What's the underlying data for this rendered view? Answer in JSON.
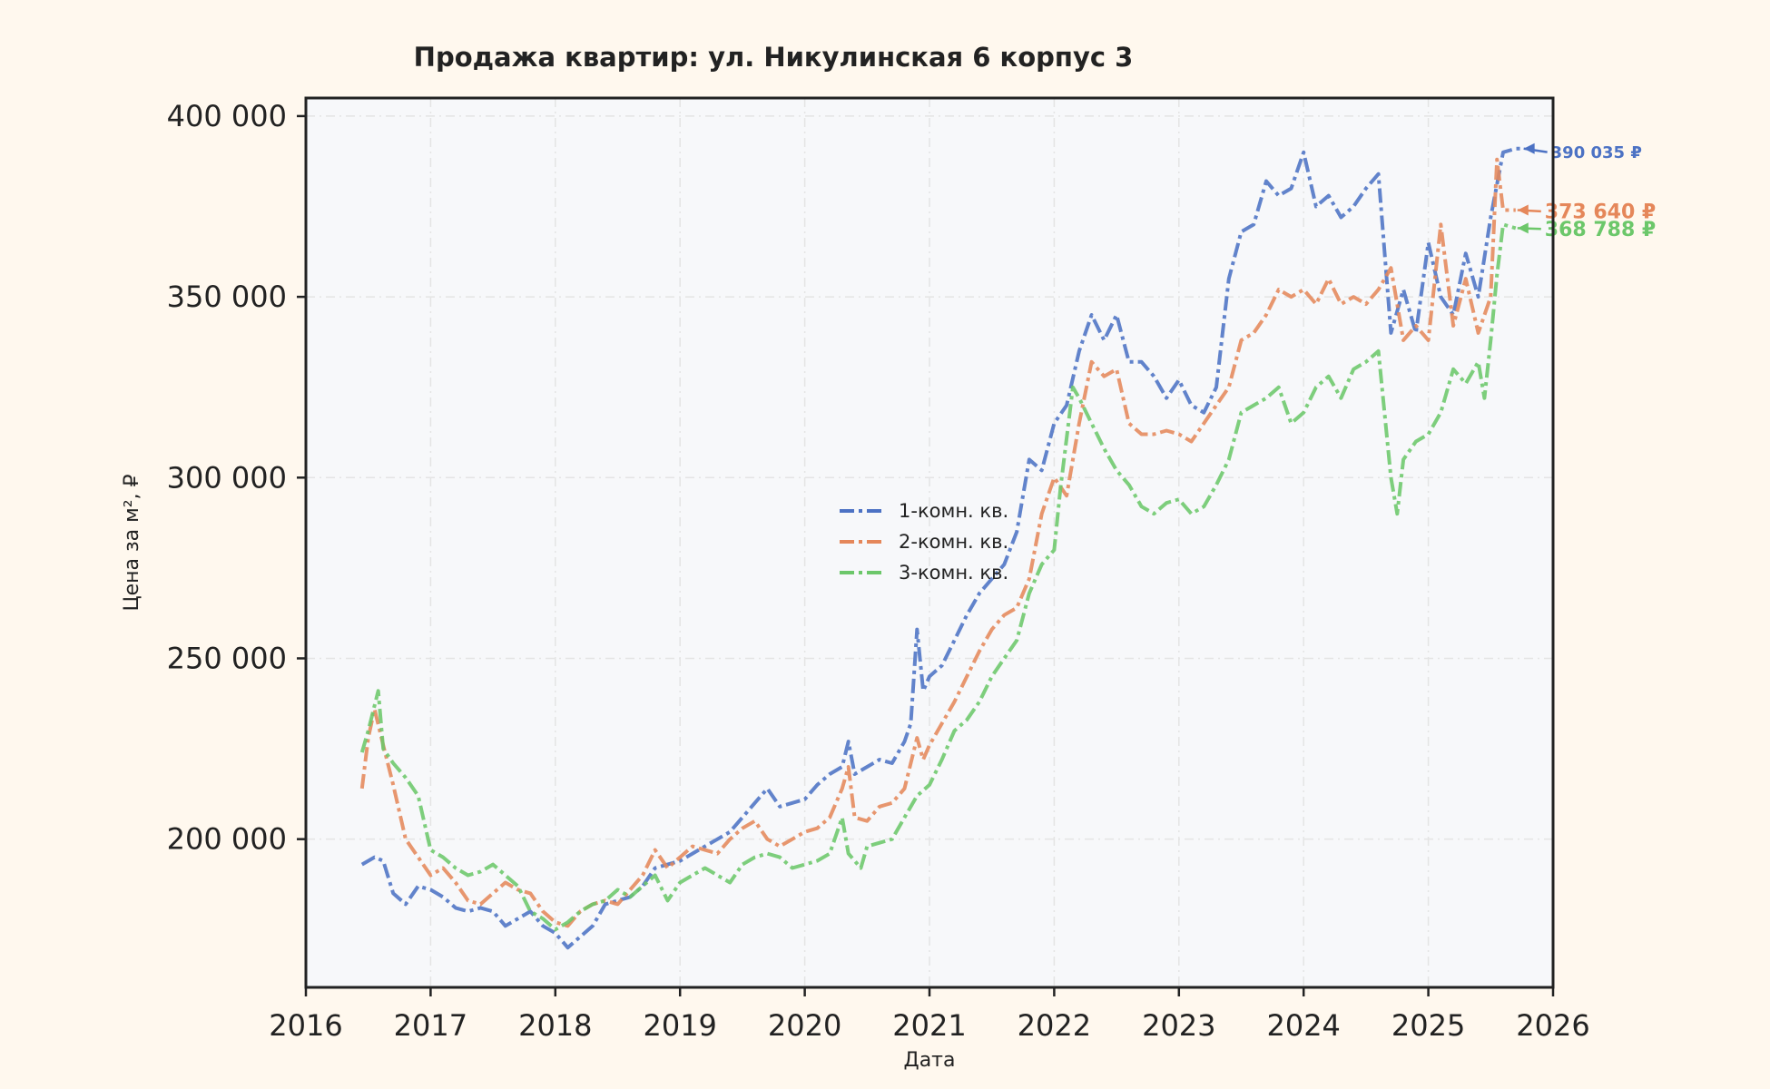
{
  "chart_data": {
    "type": "line",
    "title": "Продажа квартир: ул. Никулинская 6 корпус 3",
    "xlabel": "Дата",
    "ylabel": "Цена за м², ₽",
    "xlim": [
      2016,
      2026
    ],
    "ylim": [
      159000,
      405000
    ],
    "x_ticks": [
      "2016",
      "2017",
      "2018",
      "2019",
      "2020",
      "2021",
      "2022",
      "2023",
      "2024",
      "2025",
      "2026"
    ],
    "y_ticks": [
      {
        "value": 200000,
        "label": "200 000"
      },
      {
        "value": 250000,
        "label": "250 000"
      },
      {
        "value": 300000,
        "label": "300 000"
      },
      {
        "value": 350000,
        "label": "350 000"
      },
      {
        "value": 400000,
        "label": "400 000"
      }
    ],
    "grid": true,
    "legend_position": "center",
    "series": [
      {
        "name": "1-комн. кв.",
        "color": "#4c72c4",
        "end_label": "390 035 ₽",
        "end_value": 390035,
        "x": [
          2016.45,
          2016.55,
          2016.62,
          2016.7,
          2016.8,
          2016.9,
          2017.0,
          2017.1,
          2017.2,
          2017.3,
          2017.4,
          2017.5,
          2017.6,
          2017.7,
          2017.8,
          2017.9,
          2018.0,
          2018.1,
          2018.2,
          2018.3,
          2018.4,
          2018.5,
          2018.6,
          2018.7,
          2018.8,
          2018.9,
          2019.0,
          2019.1,
          2019.2,
          2019.3,
          2019.4,
          2019.5,
          2019.6,
          2019.7,
          2019.8,
          2019.9,
          2020.0,
          2020.1,
          2020.2,
          2020.3,
          2020.35,
          2020.4,
          2020.5,
          2020.6,
          2020.7,
          2020.8,
          2020.85,
          2020.9,
          2020.95,
          2021.0,
          2021.1,
          2021.2,
          2021.3,
          2021.4,
          2021.5,
          2021.6,
          2021.7,
          2021.75,
          2021.8,
          2021.9,
          2022.0,
          2022.1,
          2022.2,
          2022.3,
          2022.4,
          2022.5,
          2022.6,
          2022.7,
          2022.8,
          2022.9,
          2023.0,
          2023.1,
          2023.2,
          2023.3,
          2023.35,
          2023.4,
          2023.5,
          2023.6,
          2023.7,
          2023.8,
          2023.9,
          2024.0,
          2024.1,
          2024.2,
          2024.3,
          2024.4,
          2024.5,
          2024.6,
          2024.7,
          2024.8,
          2024.9,
          2025.0,
          2025.1,
          2025.2,
          2025.3,
          2025.4,
          2025.5,
          2025.6,
          2025.7,
          2025.75
        ],
        "y": [
          193000,
          195000,
          194000,
          185000,
          182000,
          187000,
          186000,
          184000,
          181000,
          180000,
          181000,
          180000,
          176000,
          178000,
          180000,
          176000,
          174000,
          170000,
          173000,
          176000,
          182000,
          183000,
          184000,
          187000,
          192000,
          193000,
          194000,
          196000,
          198000,
          200000,
          202000,
          206000,
          210000,
          214000,
          209000,
          210000,
          211000,
          215000,
          218000,
          220000,
          227000,
          218000,
          220000,
          222000,
          221000,
          227000,
          232000,
          258000,
          241000,
          245000,
          248000,
          255000,
          262000,
          268000,
          272000,
          276000,
          285000,
          295000,
          305000,
          302000,
          315000,
          320000,
          335000,
          345000,
          338000,
          345000,
          332000,
          332000,
          328000,
          322000,
          327000,
          320000,
          318000,
          325000,
          340000,
          355000,
          368000,
          370000,
          382000,
          378000,
          380000,
          390000,
          375000,
          378000,
          372000,
          375000,
          380000,
          384000,
          340000,
          352000,
          340000,
          365000,
          350000,
          345000,
          362000,
          350000,
          372000,
          390000,
          391000,
          391000
        ]
      },
      {
        "name": "2-комн. кв.",
        "color": "#e5875a",
        "end_label": "373 640 ₽",
        "end_value": 373640,
        "x": [
          2016.45,
          2016.5,
          2016.55,
          2016.62,
          2016.7,
          2016.8,
          2016.9,
          2017.0,
          2017.1,
          2017.2,
          2017.3,
          2017.4,
          2017.5,
          2017.6,
          2017.7,
          2017.8,
          2017.9,
          2018.0,
          2018.1,
          2018.2,
          2018.3,
          2018.4,
          2018.5,
          2018.6,
          2018.7,
          2018.8,
          2018.9,
          2019.0,
          2019.1,
          2019.2,
          2019.3,
          2019.4,
          2019.5,
          2019.6,
          2019.7,
          2019.8,
          2019.9,
          2020.0,
          2020.1,
          2020.2,
          2020.3,
          2020.35,
          2020.4,
          2020.5,
          2020.6,
          2020.7,
          2020.8,
          2020.9,
          2020.95,
          2021.0,
          2021.1,
          2021.2,
          2021.3,
          2021.4,
          2021.5,
          2021.6,
          2021.7,
          2021.8,
          2021.9,
          2022.0,
          2022.1,
          2022.2,
          2022.3,
          2022.4,
          2022.5,
          2022.6,
          2022.7,
          2022.8,
          2022.9,
          2023.0,
          2023.1,
          2023.2,
          2023.3,
          2023.4,
          2023.5,
          2023.6,
          2023.7,
          2023.8,
          2023.9,
          2024.0,
          2024.1,
          2024.2,
          2024.3,
          2024.4,
          2024.5,
          2024.6,
          2024.7,
          2024.8,
          2024.9,
          2025.0,
          2025.1,
          2025.2,
          2025.3,
          2025.4,
          2025.5,
          2025.55,
          2025.6,
          2025.7
        ],
        "y": [
          214000,
          228000,
          236000,
          226000,
          215000,
          200000,
          195000,
          190000,
          192000,
          188000,
          183000,
          182000,
          185000,
          188000,
          186000,
          185000,
          180000,
          177000,
          176000,
          180000,
          182000,
          183000,
          182000,
          186000,
          190000,
          197000,
          192000,
          195000,
          198000,
          197000,
          196000,
          200000,
          203000,
          205000,
          200000,
          198000,
          200000,
          202000,
          203000,
          206000,
          214000,
          220000,
          206000,
          205000,
          209000,
          210000,
          214000,
          228000,
          222000,
          226000,
          232000,
          238000,
          245000,
          252000,
          258000,
          262000,
          264000,
          272000,
          290000,
          300000,
          295000,
          315000,
          332000,
          328000,
          330000,
          315000,
          312000,
          312000,
          313000,
          312000,
          310000,
          315000,
          320000,
          325000,
          338000,
          340000,
          345000,
          352000,
          350000,
          352000,
          348000,
          355000,
          348000,
          350000,
          348000,
          352000,
          358000,
          338000,
          342000,
          338000,
          370000,
          342000,
          355000,
          340000,
          350000,
          388000,
          374000,
          374000
        ]
      },
      {
        "name": "3-комн. кв.",
        "color": "#6cc76a",
        "end_label": "368 788 ₽",
        "end_value": 368788,
        "x": [
          2016.45,
          2016.5,
          2016.58,
          2016.62,
          2016.7,
          2016.8,
          2016.9,
          2017.0,
          2017.1,
          2017.2,
          2017.3,
          2017.4,
          2017.5,
          2017.6,
          2017.7,
          2017.8,
          2017.9,
          2018.0,
          2018.1,
          2018.2,
          2018.3,
          2018.4,
          2018.5,
          2018.6,
          2018.7,
          2018.8,
          2018.9,
          2019.0,
          2019.1,
          2019.2,
          2019.3,
          2019.4,
          2019.5,
          2019.6,
          2019.7,
          2019.8,
          2019.9,
          2020.0,
          2020.1,
          2020.2,
          2020.3,
          2020.35,
          2020.45,
          2020.5,
          2020.6,
          2020.7,
          2020.8,
          2020.9,
          2021.0,
          2021.1,
          2021.2,
          2021.3,
          2021.4,
          2021.5,
          2021.6,
          2021.7,
          2021.8,
          2021.9,
          2022.0,
          2022.05,
          2022.15,
          2022.2,
          2022.3,
          2022.4,
          2022.5,
          2022.6,
          2022.7,
          2022.8,
          2022.9,
          2023.0,
          2023.1,
          2023.2,
          2023.3,
          2023.4,
          2023.5,
          2023.6,
          2023.7,
          2023.8,
          2023.9,
          2024.0,
          2024.1,
          2024.2,
          2024.3,
          2024.4,
          2024.5,
          2024.6,
          2024.7,
          2024.75,
          2024.8,
          2024.9,
          2025.0,
          2025.1,
          2025.2,
          2025.3,
          2025.4,
          2025.45,
          2025.5,
          2025.55,
          2025.6,
          2025.7
        ],
        "y": [
          224000,
          230000,
          241000,
          225000,
          221000,
          217000,
          212000,
          197000,
          195000,
          192000,
          190000,
          191000,
          193000,
          190000,
          187000,
          180000,
          178000,
          175000,
          177000,
          180000,
          182000,
          183000,
          186000,
          184000,
          187000,
          190000,
          183000,
          188000,
          190000,
          192000,
          190000,
          188000,
          193000,
          195000,
          196000,
          195000,
          192000,
          193000,
          194000,
          196000,
          206000,
          196000,
          192000,
          198000,
          199000,
          200000,
          206000,
          212000,
          215000,
          222000,
          230000,
          233000,
          238000,
          245000,
          250000,
          255000,
          268000,
          276000,
          280000,
          297000,
          325000,
          322000,
          315000,
          308000,
          302000,
          298000,
          292000,
          290000,
          293000,
          294000,
          290000,
          292000,
          298000,
          305000,
          318000,
          320000,
          322000,
          325000,
          315000,
          318000,
          325000,
          328000,
          322000,
          330000,
          332000,
          335000,
          300000,
          290000,
          305000,
          310000,
          312000,
          318000,
          330000,
          326000,
          332000,
          322000,
          338000,
          356000,
          370000,
          369000
        ]
      }
    ]
  }
}
